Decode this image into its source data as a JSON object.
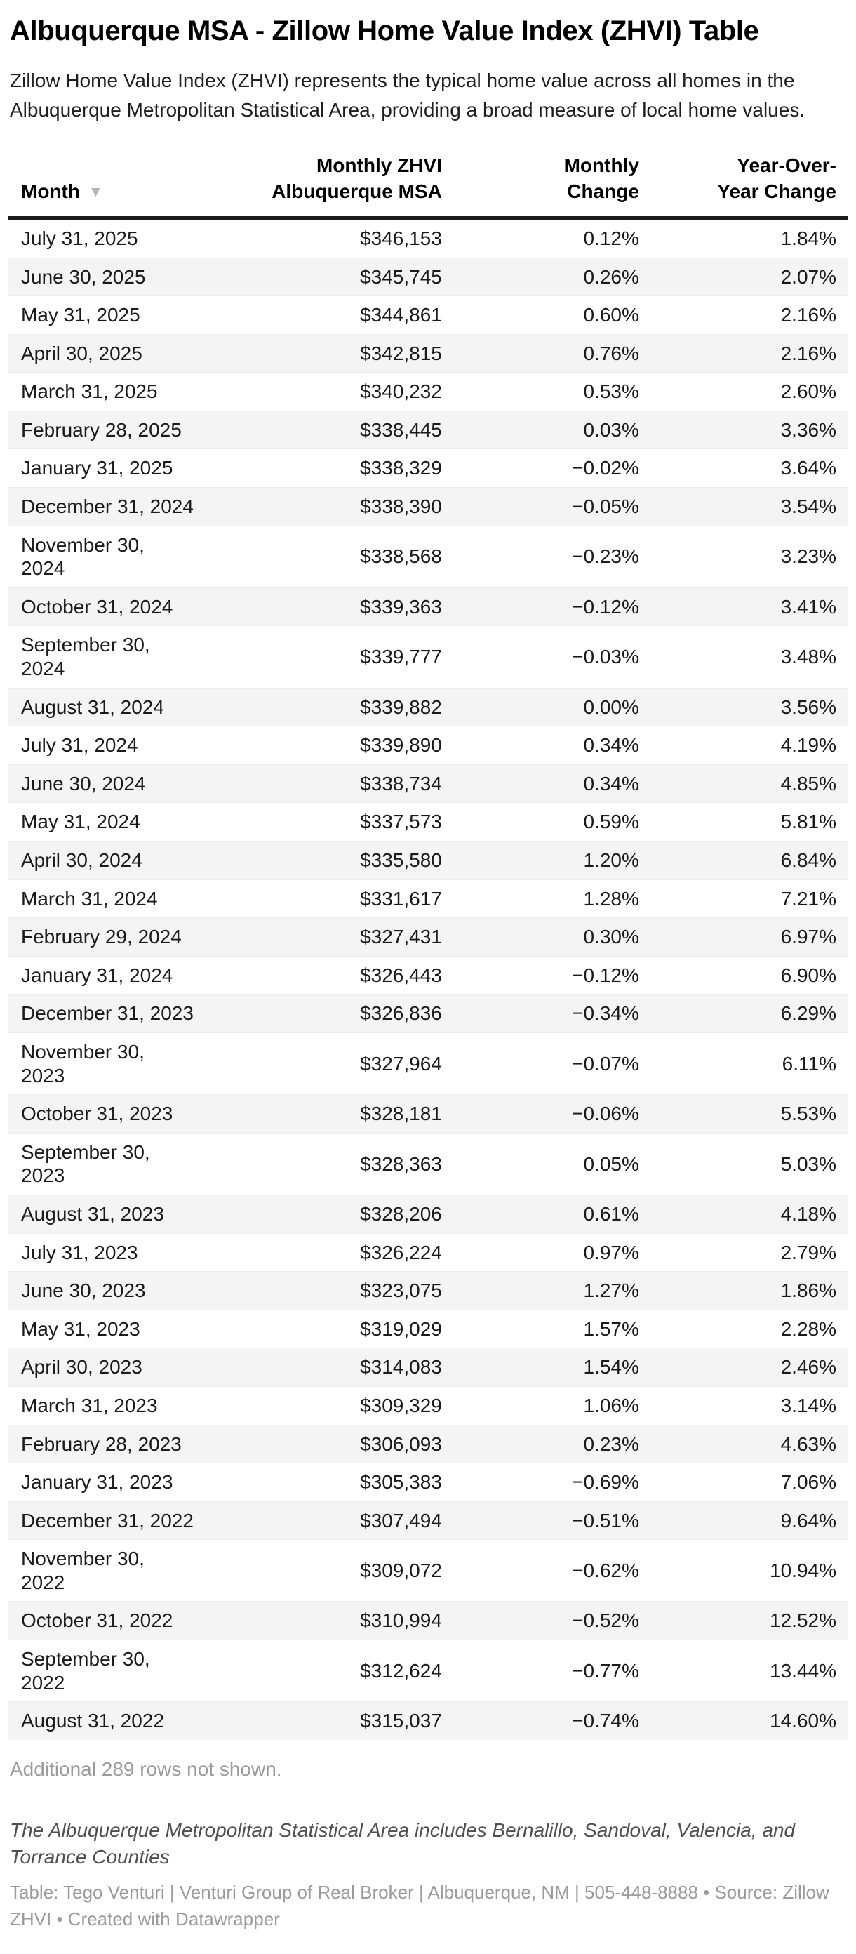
{
  "header": {
    "title": "Albuquerque MSA - Zillow Home Value Index (ZHVI) Table",
    "description": "Zillow Home Value Index (ZHVI) represents the typical home value across all homes in the Albuquerque Metropolitan Statistical Area, providing a broad measure of local home values."
  },
  "table_ui": {
    "sort_icon": "▼",
    "sorted_column": "Month",
    "sort_direction": "descending"
  },
  "colors": {
    "stripe_row_bg": "#f4f4f4",
    "header_rule": "#1a1a1a",
    "muted_text": "#9b9b9b",
    "sort_icon": "#b5b5b5"
  },
  "chart_data": {
    "type": "table",
    "title": "Albuquerque MSA - Zillow Home Value Index (ZHVI) Table",
    "columns": [
      "Month",
      "Monthly ZHVI\nAlbuquerque MSA",
      "Monthly\nChange",
      "Year-Over-\nYear Change"
    ],
    "rows": [
      [
        "July 31, 2025",
        "$346,153",
        "0.12%",
        "1.84%"
      ],
      [
        "June 30, 2025",
        "$345,745",
        "0.26%",
        "2.07%"
      ],
      [
        "May 31, 2025",
        "$344,861",
        "0.60%",
        "2.16%"
      ],
      [
        "April 30, 2025",
        "$342,815",
        "0.76%",
        "2.16%"
      ],
      [
        "March 31, 2025",
        "$340,232",
        "0.53%",
        "2.60%"
      ],
      [
        "February 28, 2025",
        "$338,445",
        "0.03%",
        "3.36%"
      ],
      [
        "January 31, 2025",
        "$338,329",
        "−0.02%",
        "3.64%"
      ],
      [
        "December 31, 2024",
        "$338,390",
        "−0.05%",
        "3.54%"
      ],
      [
        "November 30,\n2024",
        "$338,568",
        "−0.23%",
        "3.23%"
      ],
      [
        "October 31, 2024",
        "$339,363",
        "−0.12%",
        "3.41%"
      ],
      [
        "September 30,\n2024",
        "$339,777",
        "−0.03%",
        "3.48%"
      ],
      [
        "August 31, 2024",
        "$339,882",
        "0.00%",
        "3.56%"
      ],
      [
        "July 31, 2024",
        "$339,890",
        "0.34%",
        "4.19%"
      ],
      [
        "June 30, 2024",
        "$338,734",
        "0.34%",
        "4.85%"
      ],
      [
        "May 31, 2024",
        "$337,573",
        "0.59%",
        "5.81%"
      ],
      [
        "April 30, 2024",
        "$335,580",
        "1.20%",
        "6.84%"
      ],
      [
        "March 31, 2024",
        "$331,617",
        "1.28%",
        "7.21%"
      ],
      [
        "February 29, 2024",
        "$327,431",
        "0.30%",
        "6.97%"
      ],
      [
        "January 31, 2024",
        "$326,443",
        "−0.12%",
        "6.90%"
      ],
      [
        "December 31, 2023",
        "$326,836",
        "−0.34%",
        "6.29%"
      ],
      [
        "November 30,\n2023",
        "$327,964",
        "−0.07%",
        "6.11%"
      ],
      [
        "October 31, 2023",
        "$328,181",
        "−0.06%",
        "5.53%"
      ],
      [
        "September 30,\n2023",
        "$328,363",
        "0.05%",
        "5.03%"
      ],
      [
        "August 31, 2023",
        "$328,206",
        "0.61%",
        "4.18%"
      ],
      [
        "July 31, 2023",
        "$326,224",
        "0.97%",
        "2.79%"
      ],
      [
        "June 30, 2023",
        "$323,075",
        "1.27%",
        "1.86%"
      ],
      [
        "May 31, 2023",
        "$319,029",
        "1.57%",
        "2.28%"
      ],
      [
        "April 30, 2023",
        "$314,083",
        "1.54%",
        "2.46%"
      ],
      [
        "March 31, 2023",
        "$309,329",
        "1.06%",
        "3.14%"
      ],
      [
        "February 28, 2023",
        "$306,093",
        "0.23%",
        "4.63%"
      ],
      [
        "January 31, 2023",
        "$305,383",
        "−0.69%",
        "7.06%"
      ],
      [
        "December 31, 2022",
        "$307,494",
        "−0.51%",
        "9.64%"
      ],
      [
        "November 30,\n2022",
        "$309,072",
        "−0.62%",
        "10.94%"
      ],
      [
        "October 31, 2022",
        "$310,994",
        "−0.52%",
        "12.52%"
      ],
      [
        "September 30,\n2022",
        "$312,624",
        "−0.77%",
        "13.44%"
      ],
      [
        "August 31, 2022",
        "$315,037",
        "−0.74%",
        "14.60%"
      ]
    ]
  },
  "footer": {
    "additional_rows_note": "Additional 289 rows not shown.",
    "area_note": "The Albuquerque Metropolitan Statistical Area includes Bernalillo, Sandoval, Valencia, and Torrance Counties",
    "credit": "Table: Tego Venturi | Venturi Group of Real Broker | Albuquerque, NM | 505-448-8888 • Source: Zillow ZHVI • Created with Datawrapper"
  }
}
